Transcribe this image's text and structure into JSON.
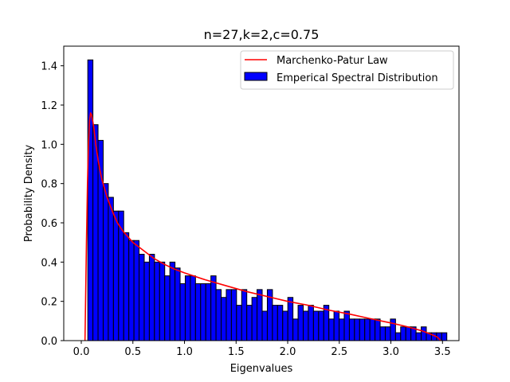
{
  "chart_data": {
    "type": "bar",
    "title": "n=27,k=2,c=0.75",
    "xlabel": "Eigenvalues",
    "ylabel": "Probability Density",
    "xlim": [
      -0.17,
      3.66
    ],
    "ylim": [
      0,
      1.5
    ],
    "xticks": [
      "0.0",
      "0.5",
      "1.0",
      "1.5",
      "2.0",
      "2.5",
      "3.0",
      "3.5"
    ],
    "xtick_values": [
      0,
      0.5,
      1.0,
      1.5,
      2.0,
      2.5,
      3.0,
      3.5
    ],
    "yticks": [
      "0.0",
      "0.2",
      "0.4",
      "0.6",
      "0.8",
      "1.0",
      "1.2",
      "1.4"
    ],
    "ytick_values": [
      0,
      0.2,
      0.4,
      0.6,
      0.8,
      1.0,
      1.2,
      1.4
    ],
    "grid": false,
    "legend_position": "top-right",
    "series": [
      {
        "name": "Marchenko-Patur Law",
        "kind": "line",
        "color": "#ff0000",
        "x": [
          0.0358,
          0.05,
          0.06,
          0.07,
          0.08,
          0.09,
          0.1,
          0.12,
          0.14,
          0.16,
          0.18,
          0.2,
          0.25,
          0.3,
          0.35,
          0.4,
          0.5,
          0.6,
          0.7,
          0.8,
          0.9,
          1.0,
          1.2,
          1.4,
          1.6,
          1.8,
          2.0,
          2.2,
          2.4,
          2.6,
          2.8,
          3.0,
          3.1,
          3.2,
          3.3,
          3.4,
          3.45,
          3.482
        ],
        "y": [
          0.0,
          0.5,
          0.8,
          1.0,
          1.12,
          1.16,
          1.15,
          1.09,
          1.0,
          0.93,
          0.87,
          0.82,
          0.73,
          0.66,
          0.6,
          0.56,
          0.5,
          0.46,
          0.42,
          0.39,
          0.365,
          0.345,
          0.31,
          0.28,
          0.25,
          0.225,
          0.2,
          0.18,
          0.155,
          0.135,
          0.112,
          0.09,
          0.078,
          0.065,
          0.05,
          0.03,
          0.018,
          0.0
        ]
      },
      {
        "name": "Emperical Spectral Distribution",
        "kind": "histogram",
        "color": "#0000ff",
        "edgecolor": "#000000",
        "bin_start": 0.063,
        "bin_width": 0.0497,
        "values": [
          1.43,
          1.1,
          1.02,
          0.8,
          0.73,
          0.66,
          0.66,
          0.55,
          0.51,
          0.51,
          0.44,
          0.4,
          0.44,
          0.4,
          0.4,
          0.33,
          0.4,
          0.37,
          0.29,
          0.33,
          0.33,
          0.29,
          0.29,
          0.29,
          0.33,
          0.26,
          0.22,
          0.26,
          0.26,
          0.18,
          0.26,
          0.18,
          0.22,
          0.26,
          0.15,
          0.26,
          0.18,
          0.18,
          0.15,
          0.22,
          0.11,
          0.18,
          0.15,
          0.18,
          0.15,
          0.15,
          0.18,
          0.11,
          0.15,
          0.11,
          0.15,
          0.11,
          0.11,
          0.11,
          0.11,
          0.11,
          0.11,
          0.07,
          0.07,
          0.11,
          0.04,
          0.07,
          0.07,
          0.07,
          0.04,
          0.07,
          0.04,
          0.04,
          0.04,
          0.04
        ]
      }
    ]
  }
}
